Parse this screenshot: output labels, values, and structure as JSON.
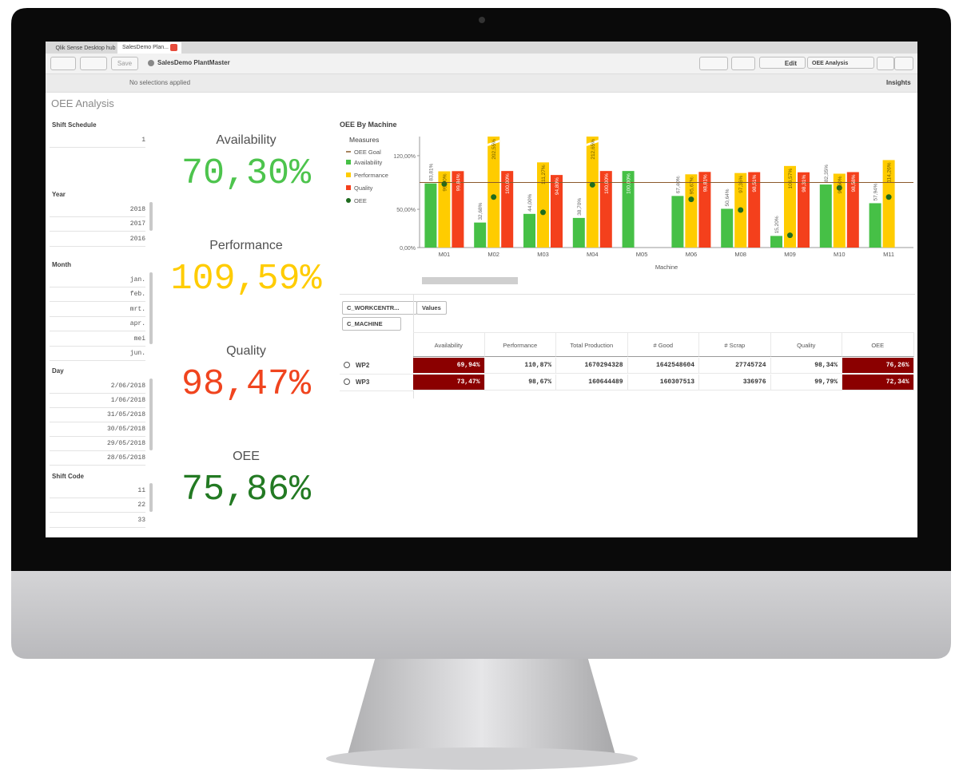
{
  "tabs": [
    "Qlik Sense Desktop hub",
    "SalesDemo Plan..."
  ],
  "toolbar": {
    "save": "Save",
    "app": "SalesDemo PlantMaster",
    "edit": "Edit",
    "sheet": "OEE Analysis",
    "insights": "Insights"
  },
  "selections": "No selections applied",
  "sheet_title": "OEE Analysis",
  "filters": [
    {
      "title": "Shift Schedule",
      "items": [
        "1"
      ]
    },
    {
      "title": "Year",
      "items": [
        "2018",
        "2017",
        "2016"
      ]
    },
    {
      "title": "Month",
      "items": [
        "jan.",
        "feb.",
        "mrt.",
        "apr.",
        "mei",
        "jun."
      ]
    },
    {
      "title": "Day",
      "items": [
        "2/06/2018",
        "1/06/2018",
        "31/05/2018",
        "30/05/2018",
        "29/05/2018",
        "28/05/2018"
      ]
    },
    {
      "title": "Shift Code",
      "items": [
        "11",
        "22",
        "33"
      ]
    }
  ],
  "kpis": [
    {
      "title": "Availability",
      "value": "70,30%",
      "color": "#4dc44d"
    },
    {
      "title": "Performance",
      "value": "109,59%",
      "color": "#ffcc00"
    },
    {
      "title": "Quality",
      "value": "98,47%",
      "color": "#f0441e"
    },
    {
      "title": "OEE",
      "value": "75,86%",
      "color": "#237a23"
    }
  ],
  "chart": {
    "type": "bar",
    "title": "OEE By Machine",
    "legend_title": "Measures",
    "x_label": "Machine",
    "categories": [
      "M01",
      "M02",
      "M03",
      "M04",
      "M05",
      "M06",
      "M08",
      "M09",
      "M10",
      "M11"
    ],
    "goal": {
      "name": "OEE Goal",
      "color": "#8b5a2b",
      "value": 85
    },
    "series": [
      {
        "name": "Availability",
        "color": "#46c046",
        "type": "bar",
        "values": [
          83.81,
          32.68,
          44.0,
          38.7,
          100.0,
          67.4,
          50.64,
          15.2,
          82.35,
          57.94
        ],
        "value_labels": [
          "83,81%",
          "32,68%",
          "44,00%",
          "38,70%",
          "100,00%",
          "67,40%",
          "50,64%",
          "15,20%",
          "82,35%",
          "57,94%"
        ]
      },
      {
        "name": "Performance",
        "color": "#ffcc00",
        "type": "bar",
        "values": [
          99.6,
          202.55,
          111.27,
          212.65,
          null,
          95.67,
          97.36,
          106.57,
          96.5,
          114.26
        ],
        "value_labels": [
          "99,60%",
          "202,55%",
          "111,27%",
          "212,65%",
          null,
          "95,67%",
          "97,36%",
          "106,57%",
          "96,50%",
          "114,26%"
        ]
      },
      {
        "name": "Quality",
        "color": "#f4401c",
        "type": "bar",
        "values": [
          99.84,
          100.0,
          94.8,
          100.0,
          null,
          98.81,
          98.51,
          98.31,
          98.58,
          null
        ],
        "value_labels": [
          "99,84%",
          "100,00%",
          "94,80%",
          "100,00%",
          null,
          "98,81%",
          "98,51%",
          "98,31%",
          "98,58%",
          null
        ]
      },
      {
        "name": "OEE",
        "color": "#1e6b1e",
        "type": "dot",
        "values": [
          83,
          66,
          46,
          82,
          null,
          63,
          49,
          16,
          78,
          66
        ]
      }
    ],
    "ylim": [
      0,
      145
    ],
    "yticks": [
      {
        "value": 0,
        "label": "0,00%"
      },
      {
        "value": 50,
        "label": "50,00%"
      },
      {
        "value": 120,
        "label": "120,00%"
      }
    ]
  },
  "table": {
    "dimensions": [
      "C_WORKCENTR...",
      "C_MACHINE"
    ],
    "measures_label": "Values",
    "columns": [
      "Availability",
      "Performance",
      "Total Production",
      "# Good",
      "# Scrap",
      "Quality",
      "OEE"
    ],
    "highlight_columns": [
      0,
      6
    ],
    "highlight_color": "#8b0000",
    "rows": [
      {
        "label": "WP2",
        "cells": [
          "69,94%",
          "110,87%",
          "1670294328",
          "1642548604",
          "27745724",
          "98,34%",
          "76,26%"
        ]
      },
      {
        "label": "WP3",
        "cells": [
          "73,47%",
          "98,67%",
          "160644489",
          "160307513",
          "336976",
          "99,79%",
          "72,34%"
        ]
      }
    ]
  }
}
